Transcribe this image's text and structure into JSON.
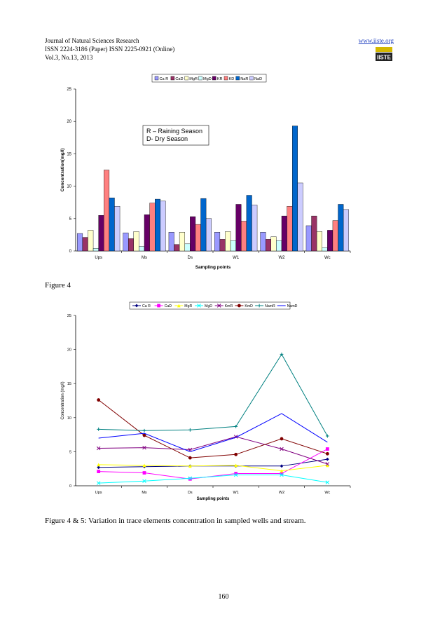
{
  "header": {
    "journal": "Journal of Natural Sciences Research",
    "issn": "ISSN 2224-3186 (Paper)   ISSN 2225-0921 (Online)",
    "volume": "Vol.3, No.13, 2013",
    "url": "www.iiste.org",
    "logo_text": "IISTE"
  },
  "figure4_label": "Figure 4",
  "caption": "Figure 4 & 5: Variation in trace elements concentration in sampled wells and stream.",
  "page_number": "160",
  "chart_data": [
    {
      "type": "bar",
      "categories": [
        "Ups",
        "Ms",
        "Ds",
        "W1",
        "W2",
        "Wc"
      ],
      "series": [
        {
          "name": "Ca R",
          "values": [
            2.7,
            2.8,
            2.9,
            2.9,
            2.9,
            3.9
          ]
        },
        {
          "name": "CaD",
          "values": [
            2.1,
            1.9,
            1.0,
            1.8,
            1.8,
            5.4
          ]
        },
        {
          "name": "MgR",
          "values": [
            3.2,
            3.0,
            2.9,
            3.0,
            2.2,
            3.0
          ]
        },
        {
          "name": "MgD",
          "values": [
            0.4,
            0.7,
            1.1,
            1.6,
            1.6,
            0.5
          ]
        },
        {
          "name": "KR",
          "values": [
            5.5,
            5.6,
            5.3,
            7.2,
            5.4,
            3.2
          ]
        },
        {
          "name": "KD",
          "values": [
            12.5,
            7.4,
            4.1,
            4.6,
            6.9,
            4.7
          ]
        },
        {
          "name": "NaR",
          "values": [
            8.2,
            8.0,
            8.1,
            8.6,
            19.3,
            7.2
          ]
        },
        {
          "name": "NaD",
          "values": [
            6.9,
            7.7,
            5.0,
            7.1,
            10.5,
            6.4
          ]
        }
      ],
      "colors": [
        "#9999ff",
        "#993366",
        "#ffffcc",
        "#ccffff",
        "#660066",
        "#ff8080",
        "#0066cc",
        "#ccccff"
      ],
      "yticks": [
        "0",
        "5",
        "10",
        "15",
        "20",
        "25"
      ],
      "ylim": [
        0,
        25
      ],
      "xlabel": "Sampling points",
      "ylabel": "Concentration(mg/l)",
      "legend_placement": "top",
      "annotation": [
        "R – Raining Season",
        "D- Dry Season"
      ],
      "grid": false
    },
    {
      "type": "line",
      "categories": [
        "Ups",
        "Ms",
        "Ds",
        "W1",
        "W2",
        "Wc"
      ],
      "series": [
        {
          "name": "Ca R",
          "values": [
            2.7,
            2.8,
            2.9,
            2.9,
            2.9,
            3.9
          ]
        },
        {
          "name": "CaD",
          "values": [
            2.1,
            1.9,
            1.0,
            1.8,
            1.8,
            5.4
          ]
        },
        {
          "name": "MgR",
          "values": [
            3.1,
            3.0,
            2.9,
            3.0,
            2.2,
            3.0
          ]
        },
        {
          "name": "MgD",
          "values": [
            0.4,
            0.7,
            1.1,
            1.6,
            1.6,
            0.5
          ]
        },
        {
          "name": "KmR",
          "values": [
            5.5,
            5.6,
            5.3,
            7.2,
            5.4,
            3.2
          ]
        },
        {
          "name": "KmD",
          "values": [
            12.6,
            7.4,
            4.1,
            4.6,
            6.9,
            4.7
          ]
        },
        {
          "name": "NamR",
          "values": [
            8.3,
            8.1,
            8.2,
            8.7,
            19.3,
            7.3
          ]
        },
        {
          "name": "NamD",
          "values": [
            7.0,
            7.7,
            5.0,
            7.1,
            10.6,
            6.4
          ]
        }
      ],
      "colors": [
        "#000080",
        "#ff00ff",
        "#ffff00",
        "#00ffff",
        "#800080",
        "#800000",
        "#008080",
        "#0000ff"
      ],
      "markers": [
        "diamond",
        "square",
        "triangle",
        "x",
        "x",
        "circle",
        "plus",
        "none"
      ],
      "yticks": [
        "0",
        "5",
        "10",
        "15",
        "20",
        "25"
      ],
      "ylim": [
        0,
        25
      ],
      "xlabel": "Sampling points",
      "ylabel": "Concentration (mg/l)",
      "legend_placement": "top",
      "grid": false
    }
  ]
}
